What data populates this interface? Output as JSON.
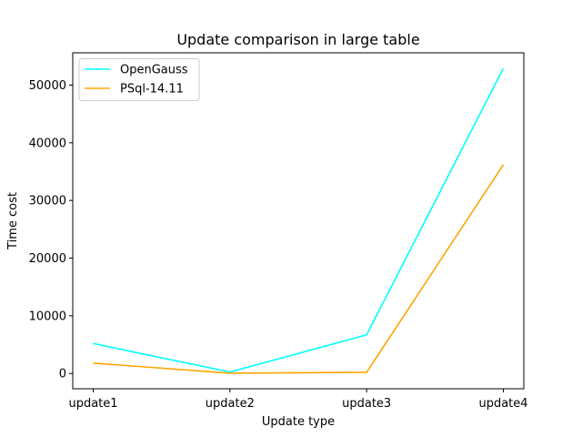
{
  "chart_data": {
    "type": "line",
    "title": "Update comparison in large table",
    "xlabel": "Update type",
    "ylabel": "Time cost",
    "categories": [
      "update1",
      "update2",
      "update3",
      "update4"
    ],
    "ylim": [
      -2650,
      55600
    ],
    "yticks": [
      0,
      10000,
      20000,
      30000,
      40000,
      50000
    ],
    "ytick_labels": [
      "0",
      "10000",
      "20000",
      "30000",
      "40000",
      "50000"
    ],
    "legend_position": "top-left",
    "grid": false,
    "series": [
      {
        "name": "OpenGauss",
        "values": [
          5200,
          250,
          6700,
          52900
        ],
        "color": "#00ffff"
      },
      {
        "name": "PSql-14.11",
        "values": [
          1800,
          50,
          200,
          36200
        ],
        "color": "#ffa500"
      }
    ]
  }
}
